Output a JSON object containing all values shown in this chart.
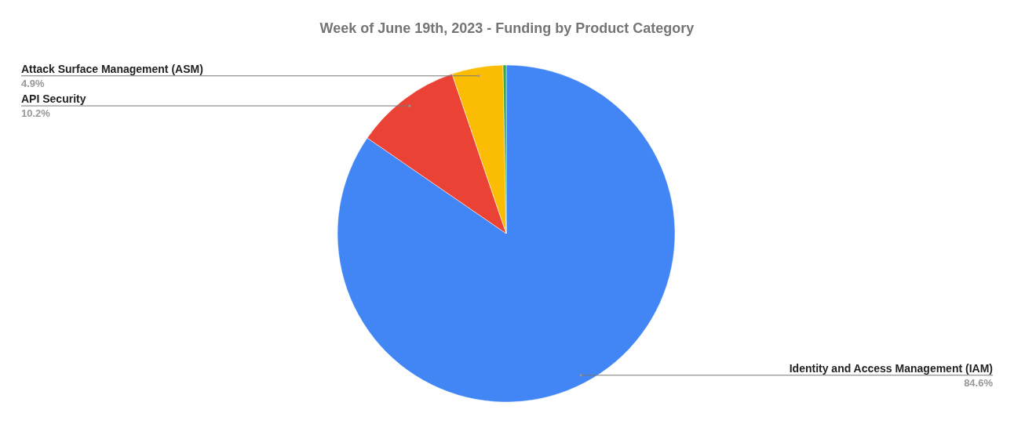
{
  "chart_data": {
    "type": "pie",
    "title": "Week of June 19th, 2023 - Funding by Product Category",
    "categories": [
      "Identity and Access Management (IAM)",
      "API Security",
      "Attack Surface Management (ASM)",
      null
    ],
    "values": [
      84.6,
      10.2,
      4.9,
      0.3
    ],
    "colors": [
      "#4285f4",
      "#ea4335",
      "#fbbc04",
      "#34a853"
    ],
    "value_labels": [
      "84.6%",
      "10.2%",
      "4.9%",
      null
    ]
  }
}
